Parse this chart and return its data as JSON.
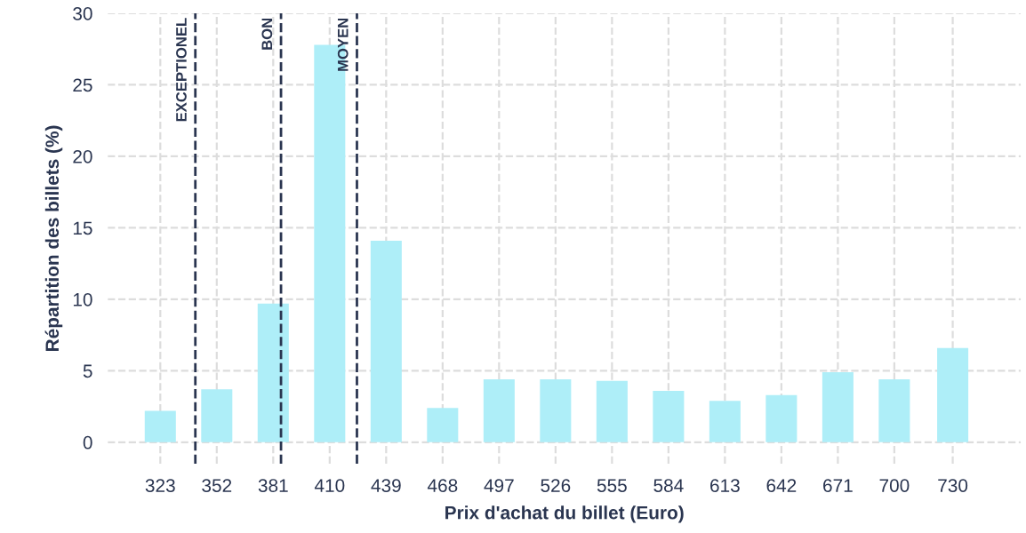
{
  "chart_data": {
    "type": "bar",
    "xlabel": "Prix d'achat du billet (Euro)",
    "ylabel": "Répartition des billets (%)",
    "x": [
      323,
      352,
      381,
      410,
      439,
      468,
      497,
      526,
      555,
      584,
      613,
      642,
      671,
      700,
      730
    ],
    "series": [
      {
        "color": "#aeeef8",
        "values": [
          2.2,
          3.7,
          9.7,
          27.8,
          14.1,
          2.4,
          4.4,
          4.4,
          4.3,
          3.6,
          2.9,
          3.3,
          4.9,
          4.4,
          6.6
        ]
      }
    ],
    "xlim": [
      296,
      765
    ],
    "xticks": [
      323,
      352,
      381,
      410,
      439,
      468,
      497,
      526,
      555,
      584,
      613,
      642,
      671,
      700,
      730
    ],
    "ylim": [
      -1.5,
      30
    ],
    "yticks": [
      0,
      5,
      10,
      15,
      20,
      25,
      30
    ],
    "grid": true,
    "ref_lines": [
      {
        "axis": "x",
        "value": 341,
        "label": "EXCEPTIONEL",
        "color": "#2a3550",
        "line_style": "dashed"
      },
      {
        "axis": "x",
        "value": 385,
        "label": "BON",
        "color": "#2a3550",
        "line_style": "dashed"
      },
      {
        "axis": "x",
        "value": 424,
        "label": "MOYEN",
        "color": "#2a3550",
        "line_style": "dashed"
      }
    ]
  }
}
